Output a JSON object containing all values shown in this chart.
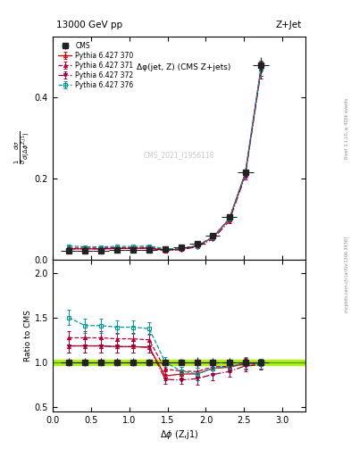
{
  "title_left": "13000 GeV pp",
  "title_right": "Z+Jet",
  "annotation": "Δφ(jet, Z) (CMS Z+jets)",
  "watermark": "CMS_2021_I1956118",
  "rivet_text": "Rivet 3.1.10, ≥ 400k events",
  "mcplots_text": "mcplots.cern.ch [arXiv:1306.3436]",
  "ylabel_main": "$\\frac{1}{\\sigma}\\frac{d\\sigma}{d(\\Delta\\phi^{Z,j1})}$",
  "ylabel_ratio": "Ratio to CMS",
  "xlabel": "$\\Delta\\phi$ (Z,j1)",
  "cms_x": [
    0.21,
    0.42,
    0.63,
    0.84,
    1.05,
    1.26,
    1.47,
    1.68,
    1.885,
    2.09,
    2.305,
    2.515,
    2.72
  ],
  "cms_y": [
    0.022,
    0.022,
    0.022,
    0.023,
    0.023,
    0.024,
    0.026,
    0.03,
    0.038,
    0.058,
    0.105,
    0.215,
    0.48
  ],
  "cms_yerr": [
    0.001,
    0.001,
    0.001,
    0.001,
    0.001,
    0.001,
    0.001,
    0.001,
    0.002,
    0.003,
    0.005,
    0.01,
    0.02
  ],
  "cms_xerr": [
    0.105,
    0.105,
    0.105,
    0.105,
    0.105,
    0.105,
    0.105,
    0.105,
    0.105,
    0.095,
    0.095,
    0.105,
    0.105
  ],
  "p370_y": [
    0.026,
    0.026,
    0.026,
    0.027,
    0.027,
    0.028,
    0.022,
    0.026,
    0.033,
    0.054,
    0.099,
    0.212,
    0.472
  ],
  "p371_y": [
    0.028,
    0.028,
    0.028,
    0.029,
    0.029,
    0.03,
    0.024,
    0.027,
    0.034,
    0.055,
    0.1,
    0.21,
    0.47
  ],
  "p372_y": [
    0.026,
    0.026,
    0.026,
    0.027,
    0.027,
    0.028,
    0.021,
    0.024,
    0.031,
    0.05,
    0.094,
    0.206,
    0.465
  ],
  "p376_y": [
    0.033,
    0.031,
    0.031,
    0.032,
    0.032,
    0.033,
    0.026,
    0.027,
    0.033,
    0.054,
    0.1,
    0.213,
    0.47
  ],
  "p370_yerr": [
    0.001,
    0.001,
    0.001,
    0.001,
    0.001,
    0.001,
    0.001,
    0.001,
    0.002,
    0.003,
    0.004,
    0.009,
    0.018
  ],
  "p371_yerr": [
    0.001,
    0.001,
    0.001,
    0.001,
    0.001,
    0.001,
    0.001,
    0.001,
    0.002,
    0.003,
    0.004,
    0.009,
    0.018
  ],
  "p372_yerr": [
    0.001,
    0.001,
    0.001,
    0.001,
    0.001,
    0.001,
    0.001,
    0.001,
    0.002,
    0.003,
    0.004,
    0.009,
    0.018
  ],
  "p376_yerr": [
    0.001,
    0.001,
    0.001,
    0.001,
    0.001,
    0.001,
    0.001,
    0.001,
    0.002,
    0.003,
    0.004,
    0.009,
    0.018
  ],
  "cms_color": "#222222",
  "p370_color": "#cc0000",
  "p371_color": "#bb0033",
  "p372_color": "#990044",
  "p376_color": "#009999",
  "ylim_main": [
    0.0,
    0.55
  ],
  "ylim_ratio": [
    0.45,
    2.15
  ],
  "xlim": [
    0.0,
    3.3
  ],
  "ratio_yticks": [
    0.5,
    1.0,
    1.5,
    2.0
  ],
  "main_yticks": [
    0.0,
    0.2,
    0.4
  ],
  "green_band_lo": 0.97,
  "green_band_hi": 1.03
}
